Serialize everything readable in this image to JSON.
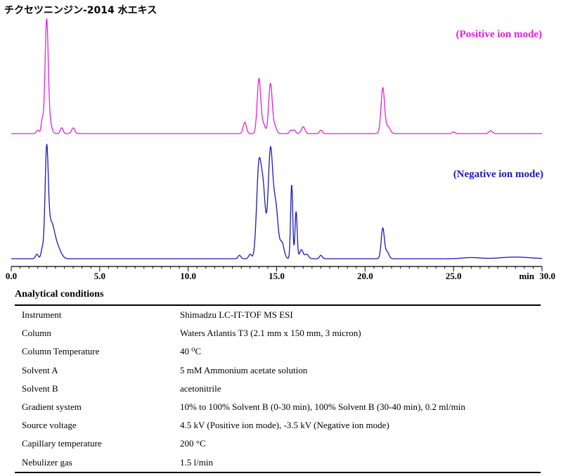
{
  "title": "チクセツニンジン-2014 水エキス",
  "chart_data": {
    "type": "line",
    "x_unit": "min",
    "xlim": [
      0,
      30
    ],
    "x_ticks": [
      "0.0",
      "5.0",
      "10.0",
      "15.0",
      "20.0",
      "25.0",
      "30.0"
    ],
    "x_tick_values": [
      0,
      5,
      10,
      15,
      20,
      25,
      30
    ],
    "y_axis_shown": false,
    "series": [
      {
        "name": "(Positive ion mode)",
        "color": "#e020e0",
        "baseline": 0,
        "max": 100,
        "peaks": [
          [
            1.5,
            3,
            0.08
          ],
          [
            1.75,
            12,
            0.06
          ],
          [
            2.0,
            100,
            0.09
          ],
          [
            2.2,
            8,
            0.1
          ],
          [
            2.85,
            5,
            0.08
          ],
          [
            3.5,
            5,
            0.09
          ],
          [
            13.2,
            10,
            0.09
          ],
          [
            14.0,
            48,
            0.1
          ],
          [
            14.25,
            8,
            0.1
          ],
          [
            14.65,
            44,
            0.1
          ],
          [
            14.9,
            6,
            0.1
          ],
          [
            15.8,
            3,
            0.08
          ],
          [
            16.0,
            3,
            0.08
          ],
          [
            16.5,
            6,
            0.1
          ],
          [
            17.5,
            3,
            0.08
          ],
          [
            21.0,
            40,
            0.1
          ],
          [
            21.3,
            6,
            0.12
          ],
          [
            25.0,
            1.5,
            0.08
          ],
          [
            27.1,
            2.5,
            0.1
          ]
        ]
      },
      {
        "name": "(Negative ion mode)",
        "color": "#1a1ab8",
        "baseline": 0,
        "max": 100,
        "peaks": [
          [
            1.45,
            4,
            0.08
          ],
          [
            1.75,
            8,
            0.07
          ],
          [
            2.0,
            90,
            0.09
          ],
          [
            2.25,
            30,
            0.18
          ],
          [
            2.6,
            10,
            0.2
          ],
          [
            12.9,
            3,
            0.08
          ],
          [
            13.5,
            4,
            0.08
          ],
          [
            14.0,
            82,
            0.13
          ],
          [
            14.25,
            55,
            0.12
          ],
          [
            14.65,
            96,
            0.13
          ],
          [
            14.95,
            45,
            0.13
          ],
          [
            15.3,
            14,
            0.12
          ],
          [
            15.85,
            66,
            0.06
          ],
          [
            16.1,
            42,
            0.06
          ],
          [
            16.4,
            8,
            0.1
          ],
          [
            16.7,
            4,
            0.1
          ],
          [
            17.5,
            3,
            0.08
          ],
          [
            21.0,
            27,
            0.09
          ],
          [
            21.25,
            6,
            0.1
          ],
          [
            26.0,
            1,
            0.5
          ],
          [
            28.5,
            1.5,
            0.8
          ]
        ]
      }
    ]
  },
  "conditions": {
    "title": "Analytical conditions",
    "rows": [
      {
        "key": "Instrument",
        "value": "Shimadzu LC-IT-TOF MS ESI"
      },
      {
        "key": "Column",
        "value": "Waters Atlantis T3 (2.1 mm x 150 mm, 3 micron)"
      },
      {
        "key": "Column Temperature",
        "value": "40 ⁰C"
      },
      {
        "key": "Solvent A",
        "value": "5 mM Ammonium acetate solution"
      },
      {
        "key": "Solvent B",
        "value": "acetonitrile"
      },
      {
        "key": "Gradient system",
        "value": "10% to 100% Solvent B (0-30 min), 100% Solvent B (30-40 min), 0.2 ml/min"
      },
      {
        "key": "Source voltage",
        "value": "4.5 kV (Positive ion mode), -3.5 kV (Negative ion mode)"
      },
      {
        "key": "Capillary temperature",
        "value": "200 °C"
      },
      {
        "key": "Nebulizer gas",
        "value": "1.5 l/min"
      }
    ]
  }
}
